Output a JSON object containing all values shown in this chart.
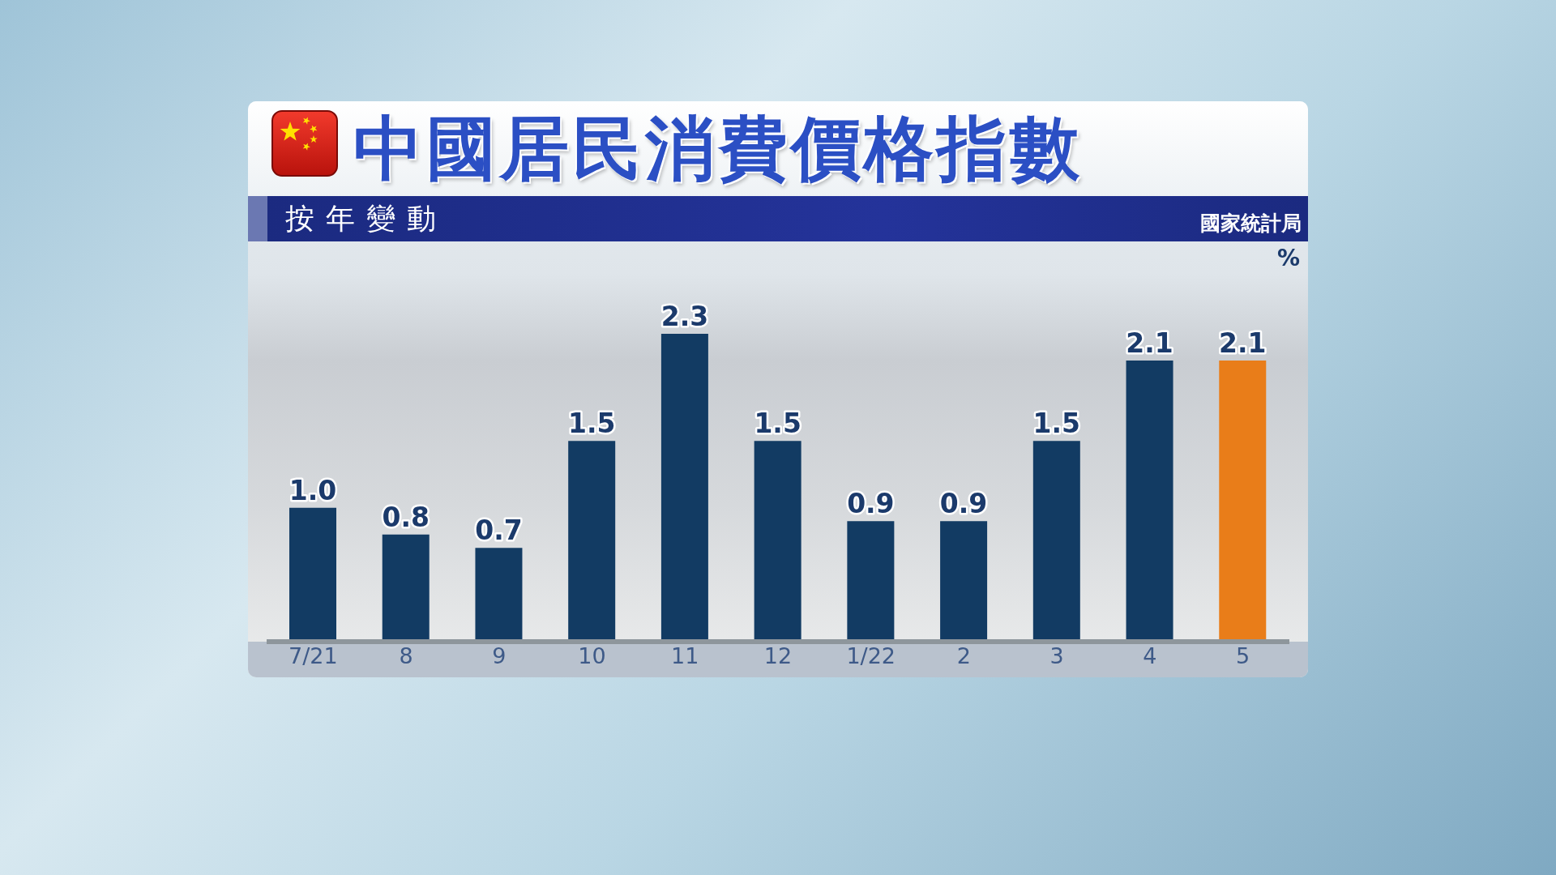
{
  "chart_data": {
    "type": "bar",
    "title": "中國居民消費價格指數",
    "subtitle": "按年變動",
    "ylabel": "%",
    "annotations": [
      "國家統計局"
    ],
    "categories": [
      "7/21",
      "8",
      "9",
      "10",
      "11",
      "12",
      "1/22",
      "2",
      "3",
      "4",
      "5"
    ],
    "values": [
      1.0,
      0.8,
      0.7,
      1.5,
      2.3,
      1.5,
      0.9,
      0.9,
      1.5,
      2.1,
      2.1
    ],
    "value_labels": [
      "1.0",
      "0.8",
      "0.7",
      "1.5",
      "2.3",
      "1.5",
      "0.9",
      "0.9",
      "1.5",
      "2.1",
      "2.1"
    ],
    "colors": [
      "#123b63",
      "#123b63",
      "#123b63",
      "#123b63",
      "#123b63",
      "#123b63",
      "#123b63",
      "#123b63",
      "#123b63",
      "#123b63",
      "#e97d19"
    ],
    "tick_labels": "x"
  }
}
